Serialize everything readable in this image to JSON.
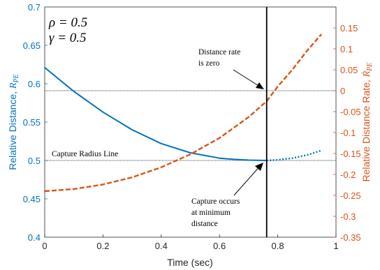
{
  "chart_data": {
    "type": "line",
    "title": "",
    "xlabel": "Time (sec)",
    "ylabel_left": "Relative Distance, ",
    "ylabel_left_math": "R",
    "ylabel_left_sub": "PE",
    "ylabel_right": "Relative Distance Rate, ",
    "ylabel_right_math": "Ṙ",
    "ylabel_right_sub": "PE",
    "xlim": [
      0,
      1
    ],
    "ylim_left": [
      0.4,
      0.7
    ],
    "ylim_right": [
      -0.35,
      0.2
    ],
    "x_ticks": [
      "0",
      "0.2",
      "0.4",
      "0.6",
      "0.8",
      "1"
    ],
    "y_left_ticks": [
      "0.4",
      "0.45",
      "0.5",
      "0.55",
      "0.6",
      "0.65",
      "0.7"
    ],
    "y_right_ticks": [
      "-0.35",
      "-0.3",
      "-0.25",
      "-0.2",
      "-0.15",
      "-0.1",
      "-0.05",
      "0",
      "0.05",
      "0.1",
      "0.15"
    ],
    "params": [
      "ρ = 0.5",
      "γ = 0.5"
    ],
    "capture_radius": 0.5,
    "capture_radius_label": "Capture Radius Line",
    "capture_time": 0.762,
    "zero_rate_line": 0,
    "annotations": [
      {
        "lines": [
          "Distance rate",
          "is zero"
        ]
      },
      {
        "lines": [
          "Capture occurs",
          "at minimum",
          "distance"
        ]
      }
    ],
    "series": [
      {
        "axis": "left",
        "color": "#0072BD",
        "style": "solid",
        "x": [
          0,
          0.1,
          0.2,
          0.3,
          0.4,
          0.5,
          0.6,
          0.65,
          0.7,
          0.762
        ],
        "y": [
          0.621,
          0.59,
          0.563,
          0.54,
          0.522,
          0.51,
          0.503,
          0.5015,
          0.5005,
          0.5
        ]
      },
      {
        "axis": "left",
        "color": "#0072BD",
        "style": "dotted",
        "x": [
          0.762,
          0.8,
          0.85,
          0.9,
          0.95
        ],
        "y": [
          0.5,
          0.5008,
          0.503,
          0.507,
          0.513
        ]
      },
      {
        "axis": "right",
        "color": "#D95319",
        "style": "dashed",
        "x": [
          0,
          0.1,
          0.2,
          0.3,
          0.4,
          0.5,
          0.6,
          0.7,
          0.762,
          0.8,
          0.85,
          0.9,
          0.95
        ],
        "y": [
          -0.24,
          -0.235,
          -0.224,
          -0.207,
          -0.183,
          -0.152,
          -0.113,
          -0.063,
          -0.025,
          0.01,
          0.05,
          0.095,
          0.135
        ]
      }
    ]
  }
}
